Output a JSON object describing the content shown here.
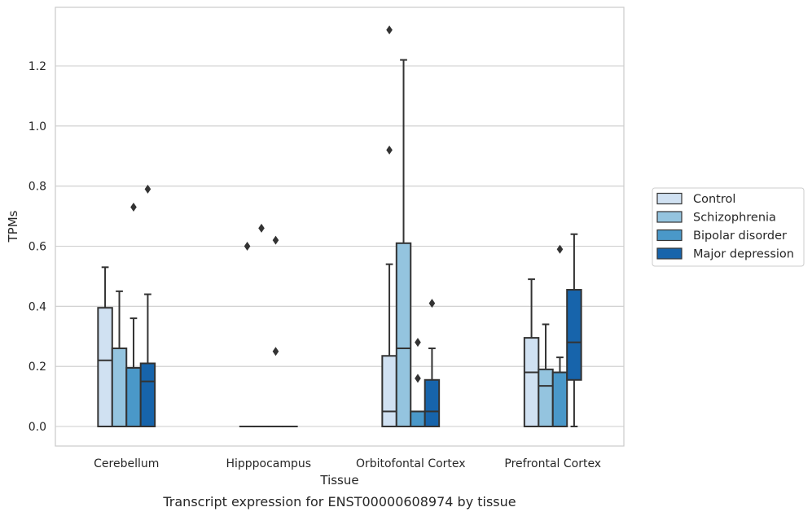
{
  "chart_data": {
    "type": "box",
    "title": "",
    "caption": "Transcript expression for ENST00000608974 by tissue",
    "xlabel": "Tissue",
    "ylabel": "TPMs",
    "ylim": [
      -0.065,
      1.395
    ],
    "yticks": [
      0.0,
      0.2,
      0.4,
      0.6,
      0.8,
      1.0,
      1.2
    ],
    "ytick_labels": [
      "0.0",
      "0.2",
      "0.4",
      "0.6",
      "0.8",
      "1.0",
      "1.2"
    ],
    "grid": "horizontal",
    "legend_position": "right",
    "categories": [
      "Cerebellum",
      "Hipppocampus",
      "Orbitofontal Cortex",
      "Prefrontal Cortex"
    ],
    "series": [
      {
        "name": "Control",
        "color": "#d0e1f2",
        "boxes": [
          {
            "min": 0.0,
            "q1": 0.0,
            "median": 0.22,
            "q3": 0.395,
            "max": 0.53,
            "outliers": []
          },
          {
            "min": 0.0,
            "q1": 0.0,
            "median": 0.0,
            "q3": 0.0,
            "max": 0.0,
            "outliers": [
              0.6
            ]
          },
          {
            "min": 0.0,
            "q1": 0.0,
            "median": 0.05,
            "q3": 0.235,
            "max": 0.54,
            "outliers": [
              0.92,
              1.32
            ]
          },
          {
            "min": 0.0,
            "q1": 0.0,
            "median": 0.18,
            "q3": 0.295,
            "max": 0.49,
            "outliers": []
          }
        ]
      },
      {
        "name": "Schizophrenia",
        "color": "#94c4df",
        "boxes": [
          {
            "min": 0.0,
            "q1": 0.0,
            "median": 0.26,
            "q3": 0.26,
            "max": 0.45,
            "outliers": []
          },
          {
            "min": 0.0,
            "q1": 0.0,
            "median": 0.0,
            "q3": 0.0,
            "max": 0.0,
            "outliers": [
              0.66
            ]
          },
          {
            "min": 0.0,
            "q1": 0.0,
            "median": 0.26,
            "q3": 0.61,
            "max": 1.22,
            "outliers": []
          },
          {
            "min": 0.0,
            "q1": 0.0,
            "median": 0.135,
            "q3": 0.19,
            "max": 0.34,
            "outliers": []
          }
        ]
      },
      {
        "name": "Bipolar disorder",
        "color": "#4a98c9",
        "boxes": [
          {
            "min": 0.0,
            "q1": 0.0,
            "median": 0.195,
            "q3": 0.195,
            "max": 0.36,
            "outliers": [
              0.73
            ]
          },
          {
            "min": 0.0,
            "q1": 0.0,
            "median": 0.0,
            "q3": 0.0,
            "max": 0.0,
            "outliers": [
              0.25,
              0.62
            ]
          },
          {
            "min": 0.0,
            "q1": 0.0,
            "median": 0.05,
            "q3": 0.05,
            "max": 0.05,
            "outliers": [
              0.16,
              0.28
            ]
          },
          {
            "min": 0.0,
            "q1": 0.0,
            "median": 0.18,
            "q3": 0.18,
            "max": 0.23,
            "outliers": [
              0.59
            ]
          }
        ]
      },
      {
        "name": "Major depression",
        "color": "#1764ab",
        "boxes": [
          {
            "min": 0.0,
            "q1": 0.0,
            "median": 0.15,
            "q3": 0.21,
            "max": 0.44,
            "outliers": [
              0.79
            ]
          },
          {
            "min": 0.0,
            "q1": 0.0,
            "median": 0.0,
            "q3": 0.0,
            "max": 0.0,
            "outliers": []
          },
          {
            "min": 0.0,
            "q1": 0.0,
            "median": 0.05,
            "q3": 0.155,
            "max": 0.26,
            "outliers": [
              0.41
            ]
          },
          {
            "min": 0.0,
            "q1": 0.155,
            "median": 0.28,
            "q3": 0.455,
            "max": 0.64,
            "outliers": []
          }
        ]
      }
    ]
  }
}
